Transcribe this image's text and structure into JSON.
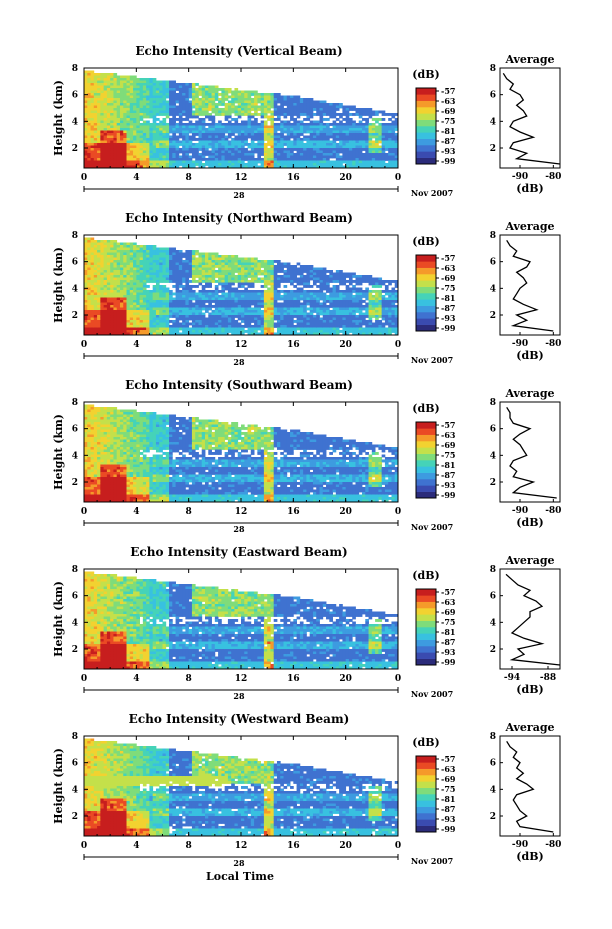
{
  "colors": {
    "scale": [
      "#2b2b7a",
      "#3a4bb0",
      "#3f72d0",
      "#3d9be0",
      "#38c1e0",
      "#45d3b8",
      "#7fdc7a",
      "#c4e04a",
      "#f2d230",
      "#f59a2a",
      "#ea4a24",
      "#c71e1e"
    ],
    "line": "#000000",
    "background": "#ffffff"
  },
  "shared": {
    "x_ticks": [
      "0",
      "4",
      "8",
      "12",
      "16",
      "20",
      "0"
    ],
    "y_ticks": [
      "2",
      "4",
      "6",
      "8"
    ],
    "date_label": "Nov 2007",
    "day_label": "28",
    "ylabel": "Height (km)",
    "colorbar_unit": "(dB)",
    "colorbar_ticks": [
      "-57",
      "-63",
      "-69",
      "-75",
      "-81",
      "-87",
      "-93",
      "-99"
    ],
    "profile_title": "Average",
    "profile_xlabel": "(dB)",
    "xlabel": "Local Time"
  },
  "chart_data": [
    {
      "type": "heatmap",
      "title": "Echo Intensity (Vertical Beam)",
      "x_range_hours": [
        0,
        24
      ],
      "y_range_km": [
        0.5,
        8
      ],
      "z_range_db": [
        -99,
        -57
      ],
      "profile": {
        "title": "Average",
        "xticks": [
          "-90",
          "-80"
        ],
        "xlim": [
          -96,
          -78
        ],
        "height_km": [
          0.8,
          1.2,
          1.6,
          2.0,
          2.4,
          2.8,
          3.2,
          3.6,
          4.0,
          4.4,
          4.8,
          5.2,
          5.6,
          6.0,
          6.4,
          6.8,
          7.2,
          7.6
        ],
        "values_db": [
          -78,
          -91,
          -88,
          -93,
          -92,
          -86,
          -90,
          -93,
          -92,
          -88,
          -89,
          -91,
          -89,
          -90,
          -93,
          -92,
          -94,
          -95
        ]
      }
    },
    {
      "type": "heatmap",
      "title": "Echo Intensity (Northward Beam)",
      "x_range_hours": [
        0,
        24
      ],
      "y_range_km": [
        0.5,
        8
      ],
      "z_range_db": [
        -99,
        -57
      ],
      "profile": {
        "title": "Average",
        "xticks": [
          "-90",
          "-80"
        ],
        "xlim": [
          -96,
          -78
        ],
        "height_km": [
          0.8,
          1.2,
          1.6,
          2.0,
          2.4,
          2.8,
          3.2,
          3.6,
          4.0,
          4.4,
          4.8,
          5.2,
          5.6,
          6.0,
          6.4,
          6.8,
          7.2,
          7.6
        ],
        "values_db": [
          -80,
          -92,
          -88,
          -91,
          -85,
          -89,
          -92,
          -91,
          -90,
          -88,
          -89,
          -91,
          -88,
          -87,
          -92,
          -91,
          -93,
          -94
        ]
      }
    },
    {
      "type": "heatmap",
      "title": "Echo Intensity (Southward Beam)",
      "x_range_hours": [
        0,
        24
      ],
      "y_range_km": [
        0.5,
        8
      ],
      "z_range_db": [
        -99,
        -57
      ],
      "profile": {
        "title": "Average",
        "xticks": [
          "-90",
          "-80"
        ],
        "xlim": [
          -96,
          -78
        ],
        "height_km": [
          0.8,
          1.2,
          1.6,
          2.0,
          2.4,
          2.8,
          3.2,
          3.6,
          4.0,
          4.4,
          4.8,
          5.2,
          5.6,
          6.0,
          6.4,
          6.8,
          7.2,
          7.6
        ],
        "values_db": [
          -79,
          -92,
          -90,
          -86,
          -92,
          -91,
          -93,
          -92,
          -88,
          -89,
          -90,
          -92,
          -90,
          -87,
          -92,
          -93,
          -93,
          -94
        ]
      }
    },
    {
      "type": "heatmap",
      "title": "Echo Intensity (Eastward Beam)",
      "x_range_hours": [
        0,
        24
      ],
      "y_range_km": [
        0.5,
        8
      ],
      "z_range_db": [
        -99,
        -57
      ],
      "profile": {
        "title": "Average",
        "xticks": [
          "-94",
          "-88"
        ],
        "xlim": [
          -96,
          -86
        ],
        "height_km": [
          0.8,
          1.2,
          1.6,
          2.0,
          2.4,
          2.8,
          3.2,
          3.6,
          4.0,
          4.4,
          4.8,
          5.2,
          5.6,
          6.0,
          6.4,
          6.8,
          7.2,
          7.6
        ],
        "values_db": [
          -86,
          -94,
          -92,
          -93,
          -89,
          -92,
          -94,
          -93,
          -92,
          -91,
          -91,
          -89,
          -90,
          -92,
          -91,
          -93,
          -94,
          -95
        ]
      }
    },
    {
      "type": "heatmap",
      "title": "Echo Intensity (Westward Beam)",
      "x_range_hours": [
        0,
        24
      ],
      "y_range_km": [
        0.5,
        8
      ],
      "z_range_db": [
        -99,
        -57
      ],
      "profile": {
        "title": "Average",
        "xticks": [
          "-90",
          "-80"
        ],
        "xlim": [
          -96,
          -78
        ],
        "height_km": [
          0.8,
          1.2,
          1.6,
          2.0,
          2.4,
          2.8,
          3.2,
          3.6,
          4.0,
          4.4,
          4.8,
          5.2,
          5.6,
          6.0,
          6.4,
          6.8,
          7.2,
          7.6
        ],
        "values_db": [
          -80,
          -90,
          -91,
          -88,
          -90,
          -91,
          -92,
          -91,
          -86,
          -88,
          -91,
          -89,
          -91,
          -90,
          -92,
          -91,
          -93,
          -94
        ]
      }
    }
  ]
}
